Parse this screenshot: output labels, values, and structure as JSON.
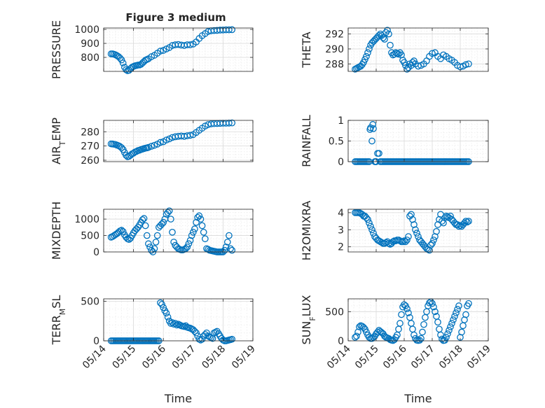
{
  "figure": {
    "title": "Figure 3 medium"
  },
  "chart_data": [
    {
      "type": "scatter",
      "ylabel": "PRESSURE",
      "ylim": [
        700,
        1010
      ],
      "yticks": [
        800,
        900,
        1000
      ],
      "xlim": [
        0,
        5
      ],
      "x_tick_labels_shown": false,
      "grid": true,
      "marker": "circle-open",
      "color": "#0072BD",
      "x": [
        0.25,
        0.3,
        0.35,
        0.4,
        0.45,
        0.5,
        0.55,
        0.6,
        0.65,
        0.7,
        0.75,
        0.8,
        0.85,
        0.9,
        0.95,
        1.0,
        1.05,
        1.1,
        1.15,
        1.2,
        1.25,
        1.3,
        1.35,
        1.4,
        1.45,
        1.5,
        1.6,
        1.7,
        1.8,
        1.9,
        2.0,
        2.1,
        2.2,
        2.3,
        2.4,
        2.5,
        2.6,
        2.7,
        2.8,
        2.9,
        3.0,
        3.1,
        3.2,
        3.3,
        3.4,
        3.5,
        3.6,
        3.7,
        3.8,
        3.9,
        4.0,
        4.1,
        4.2,
        4.3
      ],
      "y": [
        825,
        825,
        822,
        818,
        812,
        805,
        795,
        782,
        760,
        730,
        712,
        705,
        708,
        720,
        730,
        735,
        740,
        742,
        745,
        746,
        750,
        760,
        770,
        780,
        785,
        790,
        805,
        815,
        830,
        845,
        850,
        860,
        870,
        885,
        890,
        892,
        888,
        885,
        890,
        890,
        895,
        910,
        935,
        955,
        970,
        985,
        990,
        992,
        993,
        995,
        996,
        997,
        997,
        998
      ]
    },
    {
      "type": "scatter",
      "ylabel": "THETA",
      "ylim": [
        287,
        292.8
      ],
      "yticks": [
        288,
        290,
        292
      ],
      "xlim": [
        0,
        5
      ],
      "x_tick_labels_shown": false,
      "grid": true,
      "marker": "circle-open",
      "color": "#0072BD",
      "x": [
        0.25,
        0.3,
        0.35,
        0.4,
        0.45,
        0.5,
        0.55,
        0.6,
        0.65,
        0.7,
        0.75,
        0.8,
        0.85,
        0.9,
        0.95,
        1.0,
        1.05,
        1.1,
        1.15,
        1.2,
        1.25,
        1.3,
        1.35,
        1.4,
        1.45,
        1.5,
        1.55,
        1.6,
        1.65,
        1.7,
        1.75,
        1.8,
        1.85,
        1.9,
        1.95,
        2.0,
        2.05,
        2.1,
        2.15,
        2.2,
        2.25,
        2.3,
        2.35,
        2.4,
        2.5,
        2.6,
        2.7,
        2.8,
        2.9,
        3.0,
        3.1,
        3.2,
        3.3,
        3.4,
        3.5,
        3.6,
        3.7,
        3.8,
        3.9,
        4.0,
        4.1,
        4.2,
        4.3
      ],
      "y": [
        287.3,
        287.4,
        287.5,
        287.6,
        287.7,
        287.9,
        288.2,
        288.6,
        289.0,
        289.5,
        290.0,
        290.5,
        290.8,
        291.0,
        291.2,
        291.4,
        291.6,
        291.8,
        292.0,
        291.8,
        291.5,
        291.3,
        292.2,
        292.5,
        292.0,
        290.5,
        289.5,
        289.2,
        289.3,
        289.5,
        289.4,
        289.3,
        289.5,
        289.2,
        288.5,
        288.2,
        287.8,
        287.3,
        287.5,
        288.0,
        287.8,
        288.2,
        288.4,
        288.0,
        287.7,
        287.8,
        288.0,
        288.4,
        289.0,
        289.4,
        289.5,
        289.0,
        288.7,
        289.2,
        289.0,
        288.7,
        288.5,
        288.2,
        287.8,
        287.6,
        287.7,
        287.9,
        288.0
      ]
    },
    {
      "type": "scatter",
      "ylabel": "AIR_TEMP",
      "ylabel_main": "AIR",
      "ylabel_sub": "T",
      "ylabel_rest": "EMP",
      "ylim": [
        259,
        288
      ],
      "yticks": [
        260,
        270,
        280
      ],
      "xlim": [
        0,
        5
      ],
      "x_tick_labels_shown": false,
      "grid": true,
      "marker": "circle-open",
      "color": "#0072BD",
      "x": [
        0.25,
        0.3,
        0.35,
        0.4,
        0.45,
        0.5,
        0.55,
        0.6,
        0.65,
        0.7,
        0.75,
        0.8,
        0.85,
        0.9,
        0.95,
        1.0,
        1.05,
        1.1,
        1.15,
        1.2,
        1.25,
        1.3,
        1.35,
        1.4,
        1.45,
        1.5,
        1.6,
        1.7,
        1.8,
        1.9,
        2.0,
        2.1,
        2.2,
        2.3,
        2.4,
        2.5,
        2.6,
        2.7,
        2.8,
        2.9,
        3.0,
        3.1,
        3.2,
        3.3,
        3.4,
        3.5,
        3.6,
        3.7,
        3.8,
        3.9,
        4.0,
        4.1,
        4.2,
        4.3
      ],
      "y": [
        271.5,
        271.4,
        271.2,
        271.0,
        270.6,
        270.2,
        269.6,
        268.8,
        267.5,
        265.5,
        263.5,
        262.5,
        262.8,
        263.5,
        264.5,
        265.0,
        265.8,
        266.2,
        266.8,
        267.0,
        267.5,
        267.8,
        268.2,
        268.5,
        268.7,
        269.0,
        269.8,
        270.5,
        271.3,
        272.5,
        273.0,
        274.2,
        275.0,
        276.0,
        276.5,
        276.8,
        277.0,
        276.8,
        277.2,
        277.5,
        278.0,
        279.5,
        281.0,
        282.5,
        284.0,
        285.0,
        285.5,
        285.7,
        285.8,
        285.9,
        286.0,
        286.0,
        286.1,
        286.2
      ]
    },
    {
      "type": "scatter",
      "ylabel": "RAINFALL",
      "ylim": [
        0,
        1
      ],
      "yticks": [
        0,
        0.5,
        1
      ],
      "ytick_labels": [
        "0",
        "0.5",
        "1"
      ],
      "xlim": [
        0,
        5
      ],
      "x_tick_labels_shown": false,
      "grid": true,
      "marker": "circle-open",
      "color": "#0072BD",
      "x": [
        0.25,
        0.3,
        0.35,
        0.4,
        0.45,
        0.5,
        0.55,
        0.6,
        0.65,
        0.7,
        0.75,
        0.78,
        0.8,
        0.85,
        0.88,
        0.9,
        0.95,
        0.98,
        1.0,
        1.05,
        1.1,
        1.15,
        1.2,
        1.25,
        1.3,
        1.35,
        1.4,
        1.45,
        1.5,
        1.55,
        1.6,
        1.65,
        1.7,
        1.75,
        1.8,
        1.85,
        1.9,
        1.95,
        2.0,
        2.05,
        2.1,
        2.15,
        2.2,
        2.25,
        2.3,
        2.35,
        2.4,
        2.45,
        2.5,
        2.55,
        2.6,
        2.65,
        2.7,
        2.75,
        2.8,
        2.85,
        2.9,
        2.95,
        3.0,
        3.05,
        3.1,
        3.15,
        3.2,
        3.25,
        3.3,
        3.35,
        3.4,
        3.45,
        3.5,
        3.55,
        3.6,
        3.65,
        3.7,
        3.75,
        3.8,
        3.85,
        3.9,
        3.95,
        4.0,
        4.05,
        4.1,
        4.15,
        4.2,
        4.25,
        4.3
      ],
      "y": [
        0,
        0,
        0,
        0,
        0,
        0,
        0,
        0,
        0,
        0,
        0,
        0.78,
        0.82,
        0.5,
        0.9,
        0.8,
        0,
        0,
        0,
        0.2,
        0.2,
        0,
        0,
        0,
        0,
        0,
        0,
        0,
        0,
        0,
        0,
        0,
        0,
        0,
        0,
        0,
        0,
        0,
        0,
        0,
        0,
        0,
        0,
        0,
        0,
        0,
        0,
        0,
        0,
        0,
        0,
        0,
        0,
        0,
        0,
        0,
        0,
        0,
        0,
        0,
        0,
        0,
        0,
        0,
        0,
        0,
        0,
        0,
        0,
        0,
        0,
        0,
        0,
        0,
        0,
        0,
        0,
        0,
        0,
        0,
        0,
        0,
        0,
        0,
        0
      ]
    },
    {
      "type": "scatter",
      "ylabel": "MIXDEPTH",
      "ylim": [
        0,
        1300
      ],
      "yticks": [
        0,
        500,
        1000
      ],
      "xlim": [
        0,
        5
      ],
      "x_tick_labels_shown": false,
      "grid": true,
      "marker": "circle-open",
      "color": "#0072BD",
      "x": [
        0.25,
        0.3,
        0.35,
        0.4,
        0.45,
        0.5,
        0.55,
        0.6,
        0.65,
        0.7,
        0.75,
        0.8,
        0.85,
        0.9,
        0.95,
        1.0,
        1.05,
        1.1,
        1.15,
        1.2,
        1.25,
        1.3,
        1.35,
        1.4,
        1.45,
        1.5,
        1.55,
        1.6,
        1.65,
        1.7,
        1.75,
        1.8,
        1.85,
        1.9,
        1.95,
        2.0,
        2.05,
        2.1,
        2.15,
        2.2,
        2.25,
        2.3,
        2.35,
        2.4,
        2.45,
        2.5,
        2.55,
        2.6,
        2.65,
        2.7,
        2.75,
        2.8,
        2.85,
        2.9,
        2.95,
        3.0,
        3.05,
        3.1,
        3.15,
        3.2,
        3.25,
        3.3,
        3.35,
        3.4,
        3.45,
        3.5,
        3.55,
        3.6,
        3.65,
        3.7,
        3.75,
        3.8,
        3.85,
        3.9,
        3.95,
        4.0,
        4.05,
        4.1,
        4.15,
        4.2,
        4.25,
        4.3
      ],
      "y": [
        450,
        470,
        500,
        530,
        560,
        600,
        640,
        660,
        620,
        520,
        450,
        400,
        380,
        420,
        500,
        580,
        650,
        700,
        750,
        820,
        900,
        980,
        1020,
        800,
        500,
        250,
        150,
        50,
        0,
        100,
        300,
        500,
        750,
        800,
        850,
        900,
        1000,
        1150,
        1200,
        1250,
        1000,
        600,
        300,
        200,
        150,
        100,
        80,
        60,
        60,
        80,
        100,
        150,
        250,
        350,
        500,
        600,
        700,
        900,
        1050,
        1100,
        1000,
        800,
        600,
        400,
        100,
        80,
        50,
        40,
        30,
        20,
        10,
        0,
        0,
        0,
        0,
        0,
        50,
        150,
        300,
        500,
        100,
        50
      ]
    },
    {
      "type": "scatter",
      "ylabel": "H2OMIXRA",
      "ylim": [
        1.7,
        4.2
      ],
      "yticks": [
        2,
        3,
        4
      ],
      "xlim": [
        0,
        5
      ],
      "x_tick_labels_shown": false,
      "grid": true,
      "marker": "circle-open",
      "color": "#0072BD",
      "x": [
        0.25,
        0.3,
        0.35,
        0.4,
        0.45,
        0.5,
        0.55,
        0.6,
        0.65,
        0.7,
        0.75,
        0.8,
        0.85,
        0.9,
        0.95,
        1.0,
        1.05,
        1.1,
        1.15,
        1.2,
        1.25,
        1.3,
        1.35,
        1.4,
        1.45,
        1.5,
        1.55,
        1.6,
        1.65,
        1.7,
        1.75,
        1.8,
        1.85,
        1.9,
        1.95,
        2.0,
        2.05,
        2.1,
        2.15,
        2.2,
        2.25,
        2.3,
        2.35,
        2.4,
        2.45,
        2.5,
        2.55,
        2.6,
        2.65,
        2.7,
        2.75,
        2.8,
        2.85,
        2.9,
        2.95,
        3.0,
        3.05,
        3.1,
        3.15,
        3.2,
        3.25,
        3.3,
        3.35,
        3.4,
        3.45,
        3.5,
        3.55,
        3.6,
        3.65,
        3.7,
        3.75,
        3.8,
        3.85,
        3.9,
        3.95,
        4.0,
        4.05,
        4.1,
        4.15,
        4.2,
        4.25,
        4.3
      ],
      "y": [
        4.0,
        4.0,
        4.0,
        4.0,
        3.95,
        3.9,
        3.8,
        3.8,
        3.7,
        3.6,
        3.4,
        3.2,
        3.0,
        2.8,
        2.6,
        2.5,
        2.4,
        2.35,
        2.3,
        2.25,
        2.2,
        2.2,
        2.25,
        2.3,
        2.2,
        2.15,
        2.2,
        2.3,
        2.35,
        2.35,
        2.4,
        2.4,
        2.35,
        2.3,
        2.3,
        2.35,
        2.3,
        2.4,
        2.6,
        3.8,
        3.9,
        3.6,
        3.3,
        3.0,
        2.8,
        2.6,
        2.4,
        2.3,
        2.2,
        2.1,
        2.0,
        1.9,
        1.85,
        1.8,
        2.1,
        2.2,
        2.4,
        2.6,
        2.9,
        3.3,
        3.6,
        3.9,
        3.5,
        3.4,
        3.7,
        3.8,
        3.75,
        3.7,
        3.8,
        3.6,
        3.5,
        3.4,
        3.3,
        3.3,
        3.2,
        3.25,
        3.2,
        3.3,
        3.4,
        3.5,
        3.45,
        3.5
      ]
    },
    {
      "type": "scatter",
      "ylabel": "TERR_MSL",
      "ylabel_main": "TERR",
      "ylabel_sub": "M",
      "ylabel_rest": "SL",
      "ylim": [
        0,
        530
      ],
      "yticks": [
        0,
        500
      ],
      "xlim": [
        0,
        5
      ],
      "x_tick_labels": [
        "05/14",
        "05/15",
        "05/16",
        "05/17",
        "05/18",
        "05/19"
      ],
      "xlabel": "Time",
      "grid": true,
      "marker": "circle-open",
      "color": "#0072BD",
      "x": [
        0.25,
        0.3,
        0.35,
        0.4,
        0.45,
        0.5,
        0.55,
        0.6,
        0.65,
        0.7,
        0.75,
        0.8,
        0.85,
        0.9,
        0.95,
        1.0,
        1.05,
        1.1,
        1.15,
        1.2,
        1.25,
        1.3,
        1.35,
        1.4,
        1.45,
        1.5,
        1.55,
        1.6,
        1.65,
        1.7,
        1.75,
        1.8,
        1.85,
        1.9,
        1.95,
        2.0,
        2.05,
        2.1,
        2.15,
        2.2,
        2.25,
        2.3,
        2.35,
        2.4,
        2.45,
        2.5,
        2.55,
        2.6,
        2.65,
        2.7,
        2.75,
        2.8,
        2.85,
        2.9,
        2.95,
        3.0,
        3.05,
        3.1,
        3.15,
        3.2,
        3.25,
        3.3,
        3.35,
        3.4,
        3.45,
        3.5,
        3.55,
        3.6,
        3.65,
        3.7,
        3.75,
        3.8,
        3.85,
        3.9,
        3.95,
        4.0,
        4.05,
        4.1,
        4.15,
        4.2,
        4.25,
        4.3
      ],
      "y": [
        0,
        0,
        0,
        0,
        0,
        0,
        0,
        0,
        0,
        0,
        0,
        0,
        0,
        0,
        0,
        0,
        0,
        0,
        0,
        0,
        0,
        0,
        0,
        0,
        0,
        0,
        0,
        0,
        0,
        0,
        0,
        0,
        0,
        480,
        460,
        420,
        380,
        350,
        300,
        250,
        220,
        230,
        210,
        220,
        200,
        210,
        200,
        190,
        185,
        180,
        190,
        170,
        165,
        160,
        150,
        140,
        120,
        100,
        60,
        20,
        10,
        20,
        60,
        80,
        100,
        60,
        50,
        40,
        30,
        100,
        110,
        120,
        90,
        60,
        30,
        10,
        0,
        0,
        5,
        10,
        15,
        20
      ]
    },
    {
      "type": "scatter",
      "ylabel": "SUN_FLUX",
      "ylabel_main": "SUN",
      "ylabel_sub": "F",
      "ylabel_rest": "LUX",
      "ylim": [
        0,
        720
      ],
      "yticks": [
        0,
        500
      ],
      "xlim": [
        0,
        5
      ],
      "x_tick_labels": [
        "05/14",
        "05/15",
        "05/16",
        "05/17",
        "05/18",
        "05/19"
      ],
      "xlabel": "Time",
      "grid": true,
      "marker": "circle-open",
      "color": "#0072BD",
      "x": [
        0.25,
        0.3,
        0.35,
        0.4,
        0.45,
        0.5,
        0.55,
        0.6,
        0.65,
        0.7,
        0.75,
        0.8,
        0.85,
        0.9,
        0.95,
        1.0,
        1.05,
        1.1,
        1.15,
        1.2,
        1.25,
        1.3,
        1.35,
        1.4,
        1.45,
        1.5,
        1.55,
        1.6,
        1.65,
        1.7,
        1.75,
        1.8,
        1.85,
        1.9,
        1.95,
        2.0,
        2.05,
        2.1,
        2.15,
        2.2,
        2.25,
        2.3,
        2.35,
        2.4,
        2.45,
        2.5,
        2.55,
        2.6,
        2.65,
        2.7,
        2.75,
        2.8,
        2.85,
        2.9,
        2.95,
        3.0,
        3.05,
        3.1,
        3.15,
        3.2,
        3.25,
        3.3,
        3.35,
        3.4,
        3.45,
        3.5,
        3.55,
        3.6,
        3.65,
        3.7,
        3.75,
        3.8,
        3.85,
        3.9,
        3.95,
        4.0,
        4.05,
        4.1,
        4.15,
        4.2,
        4.25,
        4.3
      ],
      "y": [
        60,
        80,
        150,
        240,
        260,
        250,
        230,
        200,
        150,
        100,
        60,
        40,
        40,
        60,
        80,
        120,
        150,
        180,
        160,
        140,
        120,
        80,
        60,
        50,
        40,
        20,
        10,
        5,
        20,
        60,
        100,
        200,
        300,
        450,
        580,
        620,
        600,
        550,
        480,
        400,
        300,
        200,
        100,
        40,
        10,
        5,
        10,
        40,
        150,
        280,
        400,
        500,
        600,
        650,
        670,
        640,
        580,
        500,
        420,
        320,
        200,
        100,
        30,
        5,
        10,
        60,
        120,
        180,
        240,
        300,
        360,
        420,
        480,
        540,
        600,
        60,
        150,
        260,
        360,
        450,
        600,
        640
      ]
    }
  ]
}
